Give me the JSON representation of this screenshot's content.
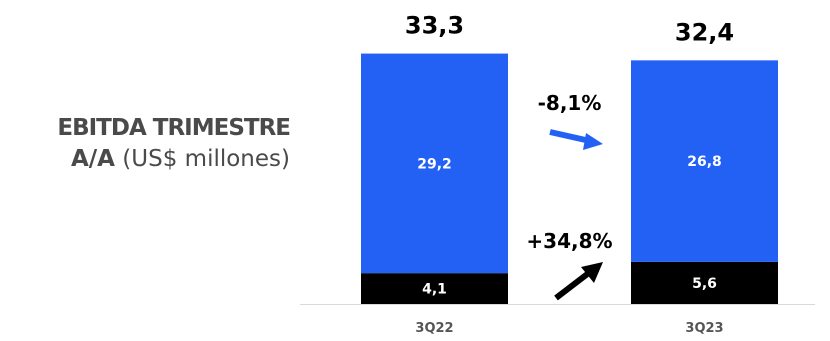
{
  "title": {
    "line1": "EBITDA TRIMESTRE",
    "line2_bold": "A/A",
    "line2_rest": " (US$ millones)"
  },
  "colors": {
    "upper_segment": "#2361f5",
    "lower_segment": "#000000",
    "blue_arrow": "#2361f5",
    "black_arrow": "#000000"
  },
  "chart_data": {
    "type": "bar",
    "stacked": true,
    "categories": [
      "3Q22",
      "3Q23"
    ],
    "series": [
      {
        "values": [
          4.1,
          5.6
        ],
        "labels": [
          "4,1",
          "5,6"
        ]
      },
      {
        "values": [
          29.2,
          26.8
        ],
        "labels": [
          "29,2",
          "26,8"
        ]
      }
    ],
    "totals": [
      33.3,
      32.4
    ],
    "total_labels": [
      "33,3",
      "32,4"
    ],
    "annotations": [
      {
        "text": "-8,1%",
        "arrow": "right",
        "series_index": 1
      },
      {
        "text": "+34,8%",
        "arrow": "up-right",
        "series_index": 0
      }
    ]
  }
}
